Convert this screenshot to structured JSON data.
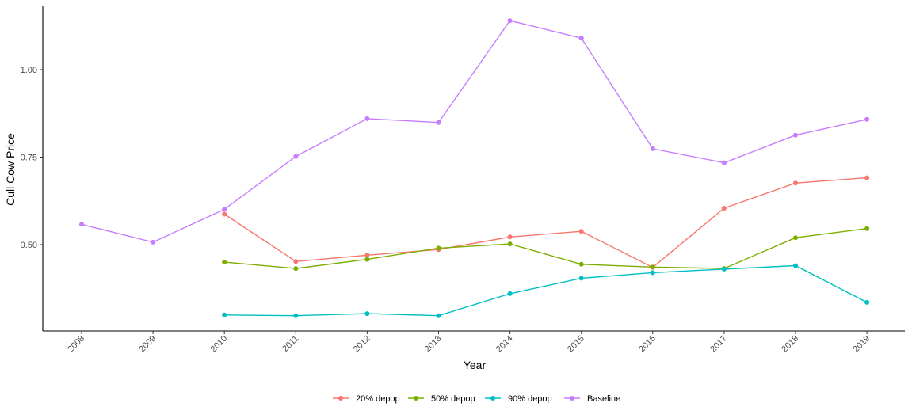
{
  "chart_data": {
    "type": "line",
    "title": "",
    "xlabel": "Year",
    "ylabel": "Cull Cow Price",
    "x": [
      2008,
      2009,
      2010,
      2011,
      2012,
      2013,
      2014,
      2015,
      2016,
      2017,
      2018,
      2019
    ],
    "x_tick_labels": [
      "2008",
      "2009",
      "2010",
      "2011",
      "2012",
      "2013",
      "2014",
      "2015",
      "2016",
      "2017",
      "2018",
      "2019"
    ],
    "y_ticks": [
      0.5,
      0.75,
      1.0
    ],
    "y_tick_labels": [
      "0.50",
      "0.75",
      "1.00"
    ],
    "ylim": [
      0.275,
      1.19
    ],
    "grid": false,
    "legend_position": "bottom",
    "series": [
      {
        "name": "20% depop",
        "color": "#F8766D",
        "values": [
          null,
          null,
          0.587,
          0.452,
          0.47,
          0.486,
          0.522,
          0.538,
          0.435,
          0.604,
          0.676,
          0.691
        ]
      },
      {
        "name": "50% depop",
        "color": "#7CAE00",
        "values": [
          null,
          null,
          0.45,
          0.432,
          0.458,
          0.49,
          0.502,
          0.444,
          0.436,
          0.432,
          0.52,
          0.546
        ]
      },
      {
        "name": "90% depop",
        "color": "#00BFC4",
        "values": [
          null,
          null,
          0.299,
          0.297,
          0.303,
          0.297,
          0.36,
          0.404,
          0.42,
          0.43,
          0.44,
          0.335
        ]
      },
      {
        "name": "Baseline",
        "color": "#C77CFF",
        "values": [
          0.558,
          0.507,
          0.601,
          0.752,
          0.86,
          0.849,
          1.14,
          1.09,
          0.774,
          0.734,
          0.813,
          0.858
        ]
      }
    ]
  }
}
